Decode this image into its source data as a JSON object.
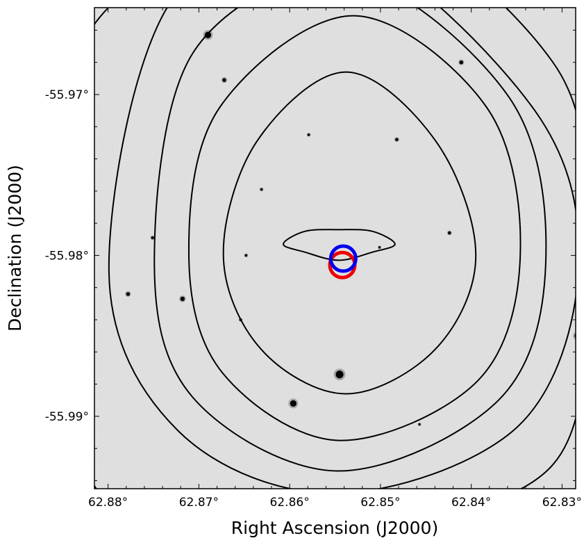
{
  "chart_data": {
    "type": "scatter",
    "title": "",
    "xlabel": "Right Ascension (J2000)",
    "ylabel": "Declination (J2000)",
    "xlim": [
      62.8815,
      62.8285
    ],
    "ylim": [
      -55.9646,
      -55.9945
    ],
    "x_ticks": [
      {
        "value": 62.88,
        "label": "62.88°"
      },
      {
        "value": 62.87,
        "label": "62.87°"
      },
      {
        "value": 62.86,
        "label": "62.86°"
      },
      {
        "value": 62.85,
        "label": "62.85°"
      },
      {
        "value": 62.84,
        "label": "62.84°"
      },
      {
        "value": 62.83,
        "label": "62.83°"
      }
    ],
    "y_ticks": [
      {
        "value": -55.99,
        "label": "-55.99°"
      },
      {
        "value": -55.98,
        "label": "-55.98°"
      },
      {
        "value": -55.97,
        "label": "-55.97°"
      }
    ],
    "background": "grayscale sky image with point sources",
    "contours": [
      {
        "level": 1,
        "ra": [
          62.8546,
          62.8509,
          62.8484,
          62.8509,
          62.8546,
          62.8583,
          62.8607,
          62.8583
        ],
        "dec": [
          -55.9803,
          -55.9798,
          -55.9793,
          -55.9785,
          -55.9784,
          -55.9785,
          -55.9793,
          -55.9798
        ]
      },
      {
        "level": 2,
        "ra": [
          62.8538,
          62.8439,
          62.8395,
          62.8439,
          62.8538,
          62.8636,
          62.8673,
          62.8632
        ],
        "dec": [
          -55.9886,
          -55.9858,
          -55.98,
          -55.9729,
          -55.9686,
          -55.9729,
          -55.98,
          -55.9858
        ]
      },
      {
        "level": 3,
        "ra": [
          62.8546,
          62.8393,
          62.8346,
          62.8383,
          62.853,
          62.8677,
          62.8711,
          62.8674
        ],
        "dec": [
          -55.9915,
          -55.9878,
          -55.98,
          -55.9708,
          -55.9651,
          -55.9708,
          -55.98,
          -55.9873
        ]
      },
      {
        "level": 4,
        "ra": [
          62.8547,
          62.837,
          62.8318,
          62.8358,
          62.8535,
          62.8704,
          62.8749,
          62.8707
        ],
        "dec": [
          -55.9934,
          -55.989,
          -55.9805,
          -55.9702,
          -55.9626,
          -55.9672,
          -55.9801,
          -55.9888
        ]
      },
      {
        "level": 5,
        "ra": [
          62.8548,
          62.835,
          62.8282,
          62.833,
          62.8537,
          62.8728,
          62.8799,
          62.8721
        ],
        "dec": [
          -55.9948,
          -55.9907,
          -55.981,
          -55.971,
          -55.9608,
          -55.964,
          -55.981,
          -55.991
        ]
      },
      {
        "level": 6,
        "ra": [
          62.854,
          62.831,
          62.8275,
          62.831,
          62.854,
          62.883,
          62.883,
          62.872
        ],
        "dec": [
          -55.9972,
          -55.993,
          -55.98,
          -55.968,
          -55.959,
          -55.967,
          -55.992,
          -55.9962
        ]
      }
    ],
    "markers": [
      {
        "name": "red circle",
        "color": "#ee0000",
        "ra": 62.8542,
        "dec": -55.9806
      },
      {
        "name": "blue circle",
        "color": "#0000ee",
        "ra": 62.8541,
        "dec": -55.9802
      }
    ],
    "sources": [
      {
        "ra": 62.8596,
        "dec": -55.9892,
        "size": 4.4
      },
      {
        "ra": 62.8545,
        "dec": -55.9874,
        "size": 5.3
      },
      {
        "ra": 62.8283,
        "dec": -55.985,
        "size": 4.0
      },
      {
        "ra": 62.8718,
        "dec": -55.9827,
        "size": 3.0
      },
      {
        "ra": 62.8778,
        "dec": -55.9824,
        "size": 2.6
      },
      {
        "ra": 62.8654,
        "dec": -55.984,
        "size": 1.8
      },
      {
        "ra": 62.8457,
        "dec": -55.9905,
        "size": 1.6
      },
      {
        "ra": 62.8501,
        "dec": -55.9795,
        "size": 1.6
      },
      {
        "ra": 62.8648,
        "dec": -55.98,
        "size": 1.8
      },
      {
        "ra": 62.8751,
        "dec": -55.9789,
        "size": 2.0
      },
      {
        "ra": 62.8424,
        "dec": -55.9786,
        "size": 2.2
      },
      {
        "ra": 62.8281,
        "dec": -55.9801,
        "size": 2.0
      },
      {
        "ra": 62.8631,
        "dec": -55.9759,
        "size": 1.8
      },
      {
        "ra": 62.8482,
        "dec": -55.9728,
        "size": 2.2
      },
      {
        "ra": 62.8579,
        "dec": -55.9725,
        "size": 1.8
      },
      {
        "ra": 62.8672,
        "dec": -55.9691,
        "size": 2.6
      },
      {
        "ra": 62.8411,
        "dec": -55.968,
        "size": 2.6
      },
      {
        "ra": 62.869,
        "dec": -55.9663,
        "size": 4.4
      }
    ]
  }
}
